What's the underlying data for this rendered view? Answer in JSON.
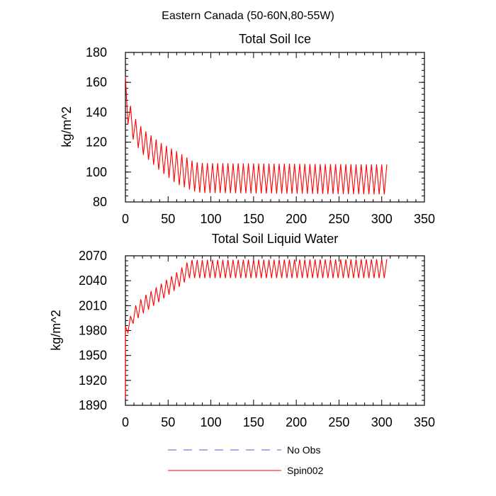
{
  "figure": {
    "suptitle": "Eastern Canada (50-60N,80-55W)"
  },
  "chart_data": [
    {
      "type": "line",
      "title": "Total Soil Ice",
      "xlabel": "",
      "ylabel": "kg/m^2",
      "xlim": [
        0,
        350
      ],
      "ylim": [
        80,
        180
      ],
      "xticks": [
        0,
        50,
        100,
        150,
        200,
        250,
        300,
        350
      ],
      "yticks": [
        80,
        100,
        120,
        140,
        160,
        180
      ],
      "series": [
        {
          "name": "Spin002",
          "color": "#ff0000",
          "cycle_period": 6,
          "x_end": 308,
          "upper_envelope": [
            [
              0,
              164
            ],
            [
              4,
              148
            ],
            [
              10,
              137
            ],
            [
              20,
              129
            ],
            [
              40,
              120
            ],
            [
              60,
              114
            ],
            [
              80,
              107
            ],
            [
              90,
              106
            ],
            [
              308,
              105
            ]
          ],
          "lower_envelope": [
            [
              0,
              138
            ],
            [
              4,
              130
            ],
            [
              10,
              120
            ],
            [
              20,
              112
            ],
            [
              40,
              101
            ],
            [
              60,
              92
            ],
            [
              80,
              87
            ],
            [
              90,
              86
            ],
            [
              308,
              85
            ]
          ]
        },
        {
          "name": "No Obs",
          "color": "#5555cc",
          "style": "dashed",
          "values": []
        }
      ]
    },
    {
      "type": "line",
      "title": "Total Soil Liquid Water",
      "xlabel": "",
      "ylabel": "kg/m^2",
      "xlim": [
        0,
        350
      ],
      "ylim": [
        1890,
        2070
      ],
      "xticks": [
        0,
        50,
        100,
        150,
        200,
        250,
        300,
        350
      ],
      "yticks": [
        1890,
        1920,
        1950,
        1980,
        2010,
        2040,
        2070
      ],
      "series": [
        {
          "name": "Spin002",
          "color": "#ff0000",
          "cycle_period": 6,
          "x_end": 308,
          "start_value": 1898,
          "upper_envelope": [
            [
              2,
              1985
            ],
            [
              5,
              1995
            ],
            [
              10,
              2008
            ],
            [
              20,
              2020
            ],
            [
              40,
              2035
            ],
            [
              60,
              2050
            ],
            [
              75,
              2065
            ],
            [
              308,
              2066
            ]
          ],
          "lower_envelope": [
            [
              2,
              1975
            ],
            [
              5,
              1982
            ],
            [
              10,
              1990
            ],
            [
              20,
              2000
            ],
            [
              40,
              2015
            ],
            [
              60,
              2030
            ],
            [
              75,
              2043
            ],
            [
              308,
              2043
            ]
          ]
        },
        {
          "name": "No Obs",
          "color": "#5555cc",
          "style": "dashed",
          "values": []
        }
      ]
    }
  ],
  "legend": {
    "placement": "bottom-center",
    "entries": [
      {
        "label": "No Obs",
        "color": "#5555cc",
        "style": "dashed"
      },
      {
        "label": "Spin002",
        "color": "#ff0000",
        "style": "solid"
      }
    ]
  }
}
